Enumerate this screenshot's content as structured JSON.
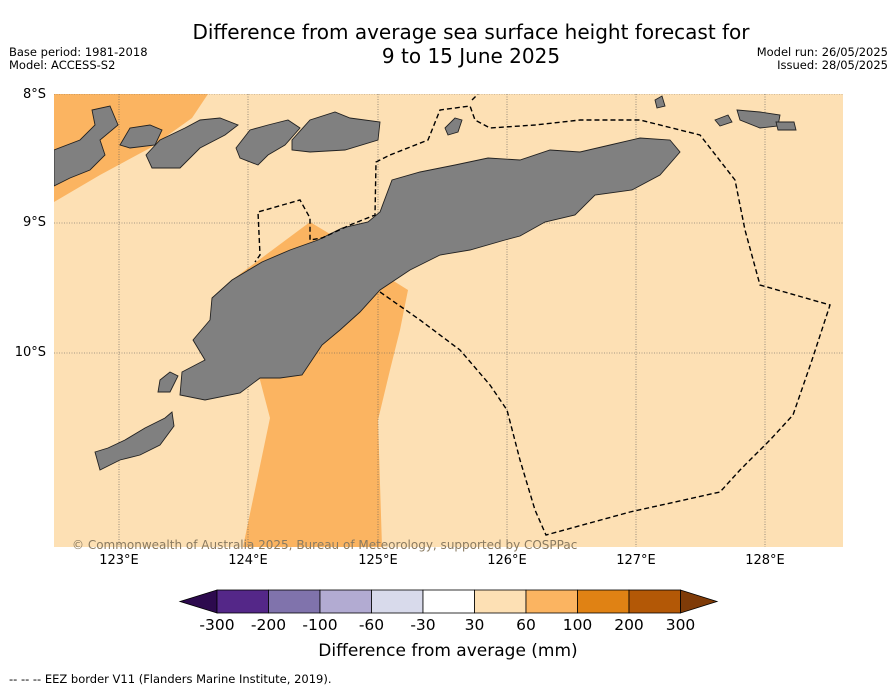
{
  "title": {
    "line1": "Difference from average sea surface height forecast for",
    "line2": "9 to 15 June 2025"
  },
  "meta": {
    "base_period": "Base period: 1981-2018",
    "model": "Model: ACCESS-S2",
    "model_run": "Model run: 26/05/2025",
    "issued": "Issued: 28/05/2025"
  },
  "map": {
    "lat_labels": [
      "8°S",
      "9°S",
      "10°S"
    ],
    "lon_labels": [
      "123°E",
      "124°E",
      "125°E",
      "126°E",
      "127°E",
      "128°E"
    ],
    "copyright": "© Commonwealth of Australia 2025, Bureau of Meteorology, supported by COSPPac",
    "colors": {
      "ocean": "#fde0b4",
      "anomaly_30_60": "#fde0b4",
      "anomaly_60_100": "#fbb461",
      "land": "#808080"
    }
  },
  "colorbar": {
    "ticks": [
      "-300",
      "-200",
      "-100",
      "-60",
      "-30",
      "30",
      "60",
      "100",
      "200",
      "300"
    ],
    "colors": [
      "#2d0a4e",
      "#542788",
      "#8073ac",
      "#b2abd2",
      "#d8daeb",
      "#ffffff",
      "#fde0b4",
      "#fbb461",
      "#e08214",
      "#b35806",
      "#7f3b08"
    ],
    "label": "Difference from average (mm)"
  },
  "footer": "--  --  -- EEZ border V11 (Flanders Marine Institute, 2019)."
}
